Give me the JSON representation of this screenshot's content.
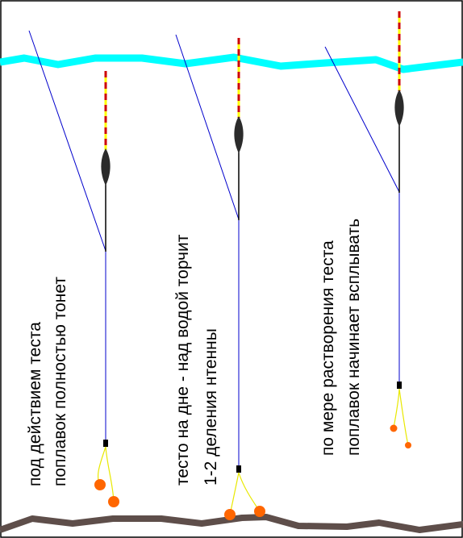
{
  "diagram": {
    "colors": {
      "frame": "#000000",
      "water": "#00ffff",
      "bottom": "#5e4e4a",
      "line": "#0000cc",
      "antenna_red": "#cc0000",
      "antenna_yellow": "#ffff00",
      "float_body": "#2b2b2b",
      "leader": "#e8e800",
      "dough": "#ff6600"
    },
    "panels": [
      {
        "id": "sinking",
        "caption_line1": "под действием теста",
        "caption_line2": "поплавок полностью тонет"
      },
      {
        "id": "on-bottom",
        "caption_line1": "тесто на дне - над водой торчит",
        "caption_line2": "1-2 деления нтенны"
      },
      {
        "id": "rising",
        "caption_line1": "по мере растворения теста",
        "caption_line2": "поплавок начинает всплывать"
      }
    ]
  }
}
